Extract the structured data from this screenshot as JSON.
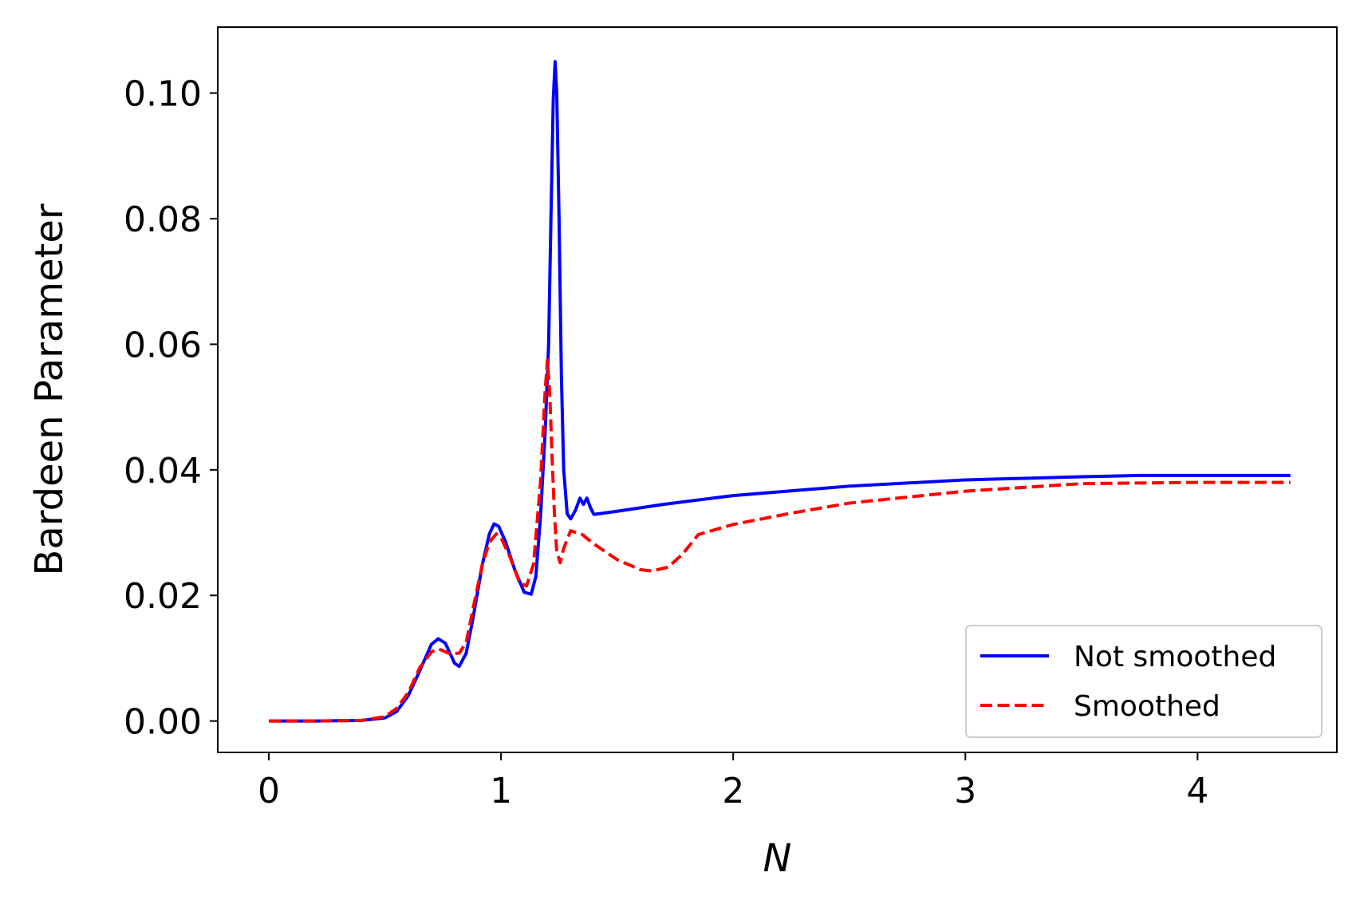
{
  "chart_data": {
    "type": "line",
    "xlabel": "N",
    "ylabel": "Bardeen Parameter",
    "xlim": [
      -0.22,
      4.6
    ],
    "ylim": [
      -0.005,
      0.1105
    ],
    "xticks": [
      0,
      1,
      2,
      3,
      4
    ],
    "xtick_labels": [
      "0",
      "1",
      "2",
      "3",
      "4"
    ],
    "yticks": [
      0.0,
      0.02,
      0.04,
      0.06,
      0.08,
      0.1
    ],
    "ytick_labels": [
      "0.00",
      "0.02",
      "0.04",
      "0.06",
      "0.08",
      "0.10"
    ],
    "grid": false,
    "legend_position": "lower-right",
    "series": [
      {
        "name": "Not smoothed",
        "color": "#0000ff",
        "style": "solid",
        "points": [
          [
            0.0,
            0.0
          ],
          [
            0.2,
            0.0
          ],
          [
            0.4,
            0.0001
          ],
          [
            0.5,
            0.0005
          ],
          [
            0.55,
            0.0015
          ],
          [
            0.6,
            0.004
          ],
          [
            0.65,
            0.008
          ],
          [
            0.7,
            0.0122
          ],
          [
            0.73,
            0.0131
          ],
          [
            0.76,
            0.0124
          ],
          [
            0.8,
            0.0092
          ],
          [
            0.82,
            0.0087
          ],
          [
            0.85,
            0.0108
          ],
          [
            0.88,
            0.0165
          ],
          [
            0.92,
            0.025
          ],
          [
            0.95,
            0.0298
          ],
          [
            0.97,
            0.0314
          ],
          [
            0.99,
            0.031
          ],
          [
            1.02,
            0.0285
          ],
          [
            1.06,
            0.024
          ],
          [
            1.1,
            0.0205
          ],
          [
            1.13,
            0.0202
          ],
          [
            1.15,
            0.023
          ],
          [
            1.17,
            0.0325
          ],
          [
            1.19,
            0.046
          ],
          [
            1.205,
            0.06
          ],
          [
            1.215,
            0.08
          ],
          [
            1.225,
            0.099
          ],
          [
            1.233,
            0.105
          ],
          [
            1.24,
            0.1
          ],
          [
            1.25,
            0.08
          ],
          [
            1.26,
            0.055
          ],
          [
            1.27,
            0.04
          ],
          [
            1.285,
            0.033
          ],
          [
            1.3,
            0.0322
          ],
          [
            1.32,
            0.0335
          ],
          [
            1.34,
            0.0355
          ],
          [
            1.355,
            0.0345
          ],
          [
            1.37,
            0.0355
          ],
          [
            1.385,
            0.034
          ],
          [
            1.4,
            0.0329
          ],
          [
            1.5,
            0.0334
          ],
          [
            1.7,
            0.0345
          ],
          [
            2.0,
            0.0359
          ],
          [
            2.5,
            0.0374
          ],
          [
            3.0,
            0.0384
          ],
          [
            3.5,
            0.0389
          ],
          [
            3.75,
            0.0391
          ],
          [
            4.0,
            0.0391
          ],
          [
            4.4,
            0.0391
          ]
        ]
      },
      {
        "name": "Smoothed",
        "color": "#ff0000",
        "style": "dashed",
        "points": [
          [
            0.0,
            0.0
          ],
          [
            0.2,
            0.0
          ],
          [
            0.4,
            0.0001
          ],
          [
            0.5,
            0.0007
          ],
          [
            0.55,
            0.002
          ],
          [
            0.6,
            0.0045
          ],
          [
            0.65,
            0.0085
          ],
          [
            0.7,
            0.011
          ],
          [
            0.73,
            0.0115
          ],
          [
            0.78,
            0.0107
          ],
          [
            0.82,
            0.0108
          ],
          [
            0.85,
            0.0125
          ],
          [
            0.88,
            0.018
          ],
          [
            0.92,
            0.025
          ],
          [
            0.95,
            0.0285
          ],
          [
            0.98,
            0.0298
          ],
          [
            1.0,
            0.0292
          ],
          [
            1.04,
            0.026
          ],
          [
            1.08,
            0.022
          ],
          [
            1.11,
            0.0215
          ],
          [
            1.14,
            0.025
          ],
          [
            1.17,
            0.038
          ],
          [
            1.19,
            0.0525
          ],
          [
            1.2,
            0.0575
          ],
          [
            1.21,
            0.052
          ],
          [
            1.22,
            0.042
          ],
          [
            1.23,
            0.033
          ],
          [
            1.24,
            0.027
          ],
          [
            1.255,
            0.0252
          ],
          [
            1.27,
            0.0275
          ],
          [
            1.3,
            0.0303
          ],
          [
            1.35,
            0.0297
          ],
          [
            1.4,
            0.0282
          ],
          [
            1.5,
            0.0257
          ],
          [
            1.6,
            0.0241
          ],
          [
            1.65,
            0.0239
          ],
          [
            1.72,
            0.0245
          ],
          [
            1.78,
            0.0265
          ],
          [
            1.85,
            0.0297
          ],
          [
            2.0,
            0.0313
          ],
          [
            2.25,
            0.0331
          ],
          [
            2.5,
            0.0347
          ],
          [
            3.0,
            0.0366
          ],
          [
            3.5,
            0.0378
          ],
          [
            4.0,
            0.038
          ],
          [
            4.4,
            0.038
          ]
        ]
      }
    ]
  }
}
